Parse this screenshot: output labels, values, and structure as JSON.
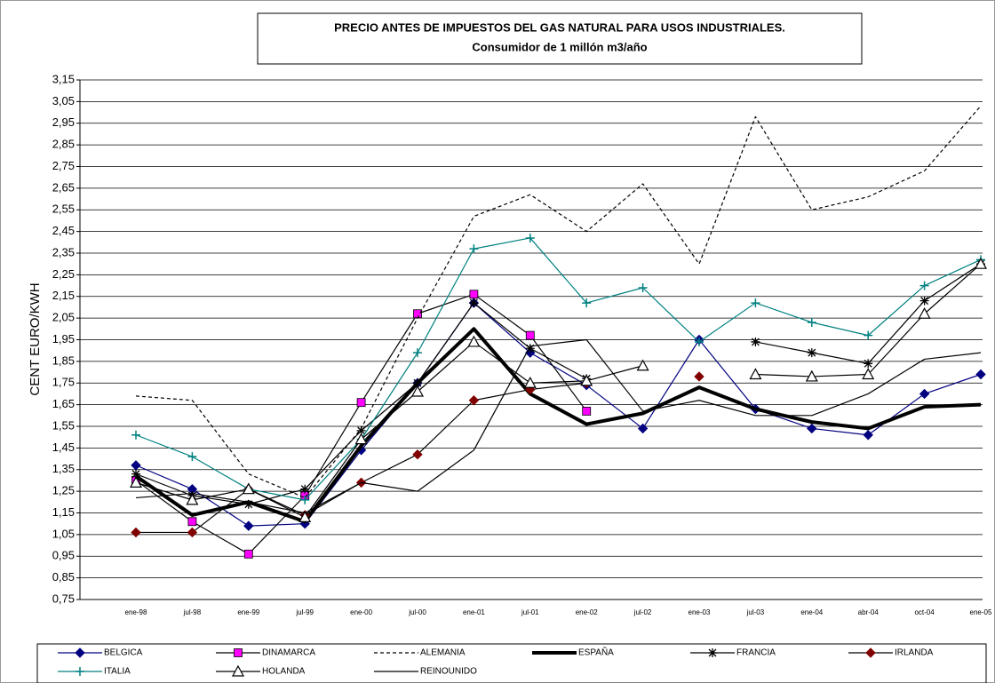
{
  "chart_data": {
    "type": "line",
    "title": "PRECIO ANTES DE IMPUESTOS DEL GAS NATURAL PARA USOS INDUSTRIALES.",
    "subtitle": "Consumidor de 1 millón m3/año",
    "y_label": "CENT EURO/KWH",
    "categories": [
      "ene-98",
      "jul-98",
      "ene-99",
      "jul-99",
      "ene-00",
      "jul-00",
      "ene-01",
      "jul-01",
      "ene-02",
      "jul-02",
      "ene-03",
      "jul-03",
      "ene-04",
      "abr-04",
      "oct-04",
      "ene-05"
    ],
    "ylim": [
      0.75,
      3.15
    ],
    "yticks": [
      {
        "value": 0.75,
        "label": "0,75"
      },
      {
        "value": 0.85,
        "label": "0,85"
      },
      {
        "value": 0.95,
        "label": "0,95"
      },
      {
        "value": 1.05,
        "label": "1,05"
      },
      {
        "value": 1.15,
        "label": "1,15"
      },
      {
        "value": 1.25,
        "label": "1,25"
      },
      {
        "value": 1.35,
        "label": "1,35"
      },
      {
        "value": 1.45,
        "label": "1,45"
      },
      {
        "value": 1.55,
        "label": "1,55"
      },
      {
        "value": 1.65,
        "label": "1,65"
      },
      {
        "value": 1.75,
        "label": "1,75"
      },
      {
        "value": 1.85,
        "label": "1,85"
      },
      {
        "value": 1.95,
        "label": "1,95"
      },
      {
        "value": 2.05,
        "label": "2,05"
      },
      {
        "value": 2.15,
        "label": "2,15"
      },
      {
        "value": 2.25,
        "label": "2,25"
      },
      {
        "value": 2.35,
        "label": "2,35"
      },
      {
        "value": 2.45,
        "label": "2,45"
      },
      {
        "value": 2.55,
        "label": "2,55"
      },
      {
        "value": 2.65,
        "label": "2,65"
      },
      {
        "value": 2.75,
        "label": "2,75"
      },
      {
        "value": 2.85,
        "label": "2,85"
      },
      {
        "value": 2.95,
        "label": "2,95"
      },
      {
        "value": 3.05,
        "label": "3,05"
      },
      {
        "value": 3.15,
        "label": "3,15"
      }
    ],
    "grid": true,
    "legend": "bottom",
    "series": [
      {
        "name": "BELGICA",
        "color": "#000080",
        "marker": "diamond",
        "values": [
          1.37,
          1.26,
          1.09,
          1.1,
          1.44,
          1.75,
          2.12,
          1.89,
          1.74,
          1.54,
          1.95,
          1.63,
          1.54,
          1.51,
          1.7,
          1.79
        ]
      },
      {
        "name": "DINAMARCA",
        "color": "#ff00ff",
        "line_color": "#000000",
        "marker": "square",
        "values": [
          1.3,
          1.11,
          0.96,
          1.23,
          1.66,
          2.07,
          2.16,
          1.97,
          1.62,
          null,
          null,
          null,
          null,
          null,
          null,
          null
        ]
      },
      {
        "name": "ALEMANIA",
        "color": "#000000",
        "dash": true,
        "marker": "none",
        "values": [
          1.69,
          1.67,
          1.33,
          1.22,
          1.54,
          2.05,
          2.52,
          2.62,
          2.45,
          2.67,
          2.3,
          2.98,
          2.55,
          2.61,
          2.73,
          3.03
        ]
      },
      {
        "name": "ESPAÑA",
        "color": "#000000",
        "width": 4,
        "marker": "none",
        "values": [
          1.32,
          1.14,
          1.2,
          1.11,
          1.46,
          1.75,
          2.0,
          1.7,
          1.56,
          1.61,
          1.73,
          1.63,
          1.57,
          1.54,
          1.64,
          1.65
        ]
      },
      {
        "name": "FRANCIA",
        "color": "#000000",
        "marker": "asterisk",
        "values": [
          1.33,
          1.23,
          1.19,
          1.26,
          1.53,
          1.75,
          2.12,
          1.91,
          1.77,
          null,
          null,
          1.94,
          1.89,
          1.84,
          2.13,
          2.3
        ]
      },
      {
        "name": "IRLANDA",
        "color": "#800000",
        "line_color": "#000000",
        "marker": "diamond",
        "values": [
          1.06,
          1.06,
          1.26,
          1.14,
          1.29,
          1.42,
          1.67,
          1.72,
          1.75,
          null,
          1.78,
          null,
          null,
          null,
          null,
          null
        ]
      },
      {
        "name": "ITALIA",
        "color": "#008080",
        "marker": "plus",
        "values": [
          1.51,
          1.41,
          1.26,
          1.21,
          1.49,
          1.89,
          2.37,
          2.42,
          2.12,
          2.19,
          1.94,
          2.12,
          2.03,
          1.97,
          2.2,
          2.32
        ]
      },
      {
        "name": "HOLANDA",
        "color": "#000000",
        "marker": "triangle",
        "values": [
          1.29,
          1.21,
          1.26,
          1.13,
          1.49,
          1.71,
          1.94,
          1.75,
          1.76,
          1.83,
          null,
          1.79,
          1.78,
          1.79,
          2.07,
          2.3
        ]
      },
      {
        "name": "REINOUNIDO",
        "color": "#000000",
        "marker": "none",
        "values": [
          1.22,
          1.24,
          1.2,
          1.15,
          1.29,
          1.25,
          1.44,
          1.92,
          1.95,
          1.62,
          1.67,
          1.6,
          1.6,
          1.7,
          1.86,
          1.89
        ]
      }
    ]
  }
}
